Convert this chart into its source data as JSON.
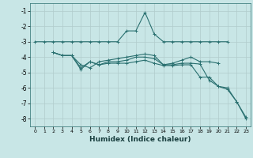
{
  "xlabel": "Humidex (Indice chaleur)",
  "background_color": "#c8e6e6",
  "grid_color": "#b0cccc",
  "line_color": "#2a7070",
  "xlim": [
    -0.5,
    23.5
  ],
  "ylim": [
    -8.5,
    -0.5
  ],
  "yticks": [
    -1,
    -2,
    -3,
    -4,
    -5,
    -6,
    -7,
    -8
  ],
  "xticks": [
    0,
    1,
    2,
    3,
    4,
    5,
    6,
    7,
    8,
    9,
    10,
    11,
    12,
    13,
    14,
    15,
    16,
    17,
    18,
    19,
    20,
    21,
    22,
    23
  ],
  "series": [
    {
      "x": [
        0,
        1,
        2,
        3,
        4,
        5,
        6,
        7,
        8,
        9,
        10,
        11,
        12,
        13,
        14,
        15,
        16,
        17,
        18,
        19,
        20,
        21
      ],
      "y": [
        -3.0,
        -3.0,
        -3.0,
        -3.0,
        -3.0,
        -3.0,
        -3.0,
        -3.0,
        -3.0,
        -3.0,
        -2.3,
        -2.3,
        -1.1,
        -2.5,
        -3.0,
        -3.0,
        -3.0,
        -3.0,
        -3.0,
        -3.0,
        -3.0,
        -3.0
      ]
    },
    {
      "x": [
        2,
        3,
        4,
        5,
        6,
        7,
        8,
        9,
        10,
        11,
        12,
        13,
        14,
        15,
        16,
        17,
        18,
        19,
        20
      ],
      "y": [
        -3.7,
        -3.9,
        -3.9,
        -4.5,
        -4.7,
        -4.3,
        -4.2,
        -4.1,
        -4.0,
        -3.9,
        -3.8,
        -3.9,
        -4.5,
        -4.4,
        -4.2,
        -4.0,
        -4.3,
        -4.3,
        -4.4
      ]
    },
    {
      "x": [
        2,
        3,
        4,
        5,
        6,
        7,
        8,
        9,
        10,
        11,
        12,
        13,
        14,
        15,
        16,
        17,
        18,
        19,
        20,
        21,
        22,
        23
      ],
      "y": [
        -3.7,
        -3.9,
        -3.9,
        -4.8,
        -4.3,
        -4.5,
        -4.3,
        -4.3,
        -4.2,
        -4.0,
        -4.0,
        -4.1,
        -4.5,
        -4.5,
        -4.4,
        -4.4,
        -4.45,
        -5.5,
        -5.9,
        -6.1,
        -6.9,
        -7.9
      ]
    },
    {
      "x": [
        2,
        3,
        4,
        5,
        6,
        7,
        8,
        9,
        10,
        11,
        12,
        13,
        14,
        15,
        16,
        17,
        18,
        19,
        20,
        21,
        22,
        23
      ],
      "y": [
        -3.7,
        -3.9,
        -3.9,
        -4.7,
        -4.3,
        -4.5,
        -4.4,
        -4.4,
        -4.4,
        -4.3,
        -4.2,
        -4.4,
        -4.55,
        -4.55,
        -4.5,
        -4.5,
        -5.3,
        -5.3,
        -5.9,
        -6.0,
        -6.9,
        -8.0
      ]
    }
  ]
}
